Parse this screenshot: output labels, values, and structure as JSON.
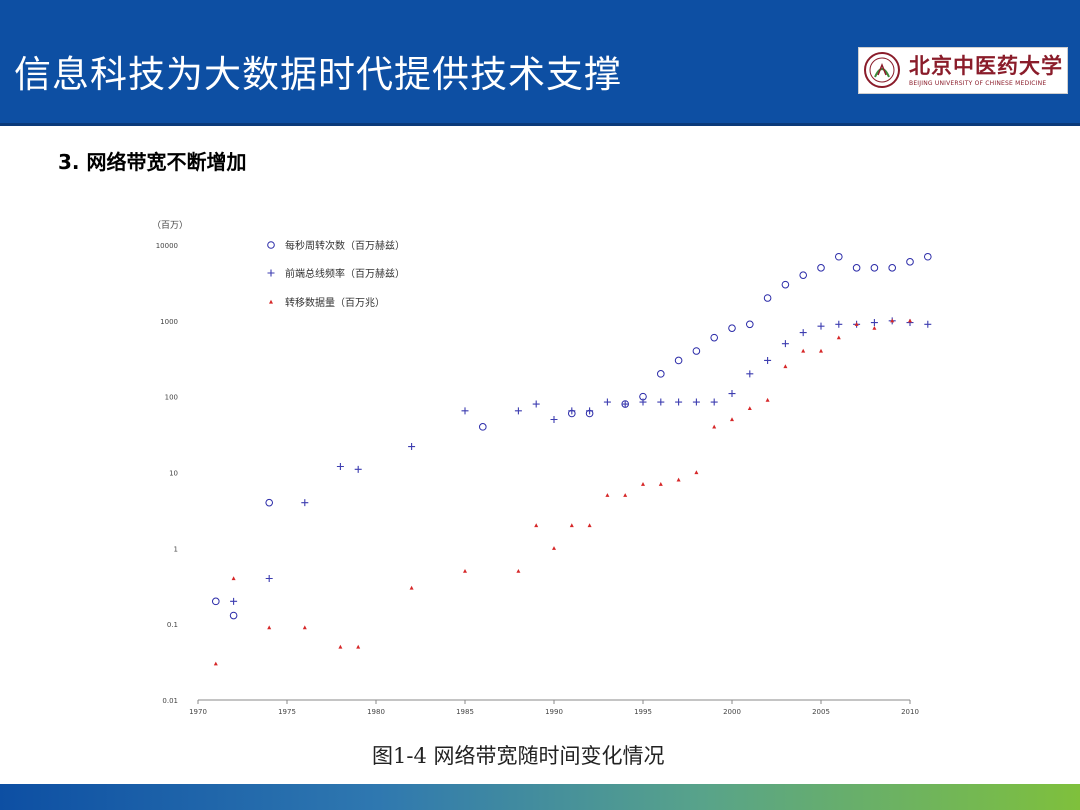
{
  "slide": {
    "title": "信息科技为大数据时代提供技术支撑",
    "subtitle": "3. 网络带宽不断增加",
    "caption": "图1-4 网络带宽随时间变化情况",
    "colors": {
      "header": "#0d4fa3",
      "accent_green": "#7fc03c",
      "logo_red": "#8a1c2a"
    }
  },
  "logo": {
    "name_cn": "北京中医药大学",
    "name_en": "BEIJING UNIVERSITY OF CHINESE MEDICINE",
    "icon": "university-seal-icon"
  },
  "chart_data": {
    "type": "scatter",
    "ylabel": "（百万）",
    "yscale": "log",
    "ylim": [
      0.01,
      10000
    ],
    "xlim": [
      1970,
      2010
    ],
    "x_ticks": [
      "1970",
      "1975",
      "1980",
      "1985",
      "1990",
      "1995",
      "2000",
      "2005",
      "2010"
    ],
    "y_ticks": [
      {
        "value": 10000,
        "label": "10000"
      },
      {
        "value": 1000,
        "label": "1000"
      },
      {
        "value": 100,
        "label": "100"
      },
      {
        "value": 10,
        "label": "10"
      },
      {
        "value": 1,
        "label": "1"
      },
      {
        "value": 0.1,
        "label": "0.1"
      },
      {
        "value": 0.01,
        "label": "0.01"
      }
    ],
    "grid": false,
    "legend_position": "top-left",
    "series": [
      {
        "name": "每秒周转次数（百万赫兹）",
        "marker": "circle",
        "color": "#2b2ba8",
        "points": [
          [
            1971,
            0.2
          ],
          [
            1972,
            0.13
          ],
          [
            1974,
            4
          ],
          [
            1986,
            40
          ],
          [
            1991,
            60
          ],
          [
            1992,
            60
          ],
          [
            1994,
            80
          ],
          [
            1995,
            100
          ],
          [
            1996,
            200
          ],
          [
            1997,
            300
          ],
          [
            1998,
            400
          ],
          [
            1999,
            600
          ],
          [
            2000,
            800
          ],
          [
            2001,
            900
          ],
          [
            2002,
            2000
          ],
          [
            2003,
            3000
          ],
          [
            2004,
            4000
          ],
          [
            2005,
            5000
          ],
          [
            2006,
            7000
          ],
          [
            2007,
            5000
          ],
          [
            2008,
            5000
          ],
          [
            2009,
            5000
          ],
          [
            2010,
            6000
          ],
          [
            2011,
            7000
          ]
        ]
      },
      {
        "name": "前端总线频率（百万赫兹）",
        "marker": "plus",
        "color": "#3d3db0",
        "points": [
          [
            1972,
            0.2
          ],
          [
            1974,
            0.4
          ],
          [
            1976,
            4
          ],
          [
            1978,
            12
          ],
          [
            1979,
            11
          ],
          [
            1982,
            22
          ],
          [
            1985,
            65
          ],
          [
            1988,
            65
          ],
          [
            1989,
            80
          ],
          [
            1990,
            50
          ],
          [
            1991,
            65
          ],
          [
            1992,
            65
          ],
          [
            1993,
            85
          ],
          [
            1994,
            80
          ],
          [
            1995,
            85
          ],
          [
            1996,
            85
          ],
          [
            1997,
            85
          ],
          [
            1998,
            85
          ],
          [
            1999,
            85
          ],
          [
            2000,
            110
          ],
          [
            2001,
            200
          ],
          [
            2002,
            300
          ],
          [
            2003,
            500
          ],
          [
            2004,
            700
          ],
          [
            2005,
            850
          ],
          [
            2006,
            900
          ],
          [
            2007,
            900
          ],
          [
            2008,
            950
          ],
          [
            2009,
            1000
          ],
          [
            2010,
            950
          ],
          [
            2011,
            900
          ]
        ]
      },
      {
        "name": "转移数据量（百万兆）",
        "marker": "triangle",
        "color": "#d62728",
        "points": [
          [
            1971,
            0.03
          ],
          [
            1972,
            0.4
          ],
          [
            1974,
            0.09
          ],
          [
            1976,
            0.09
          ],
          [
            1978,
            0.05
          ],
          [
            1979,
            0.05
          ],
          [
            1982,
            0.3
          ],
          [
            1985,
            0.5
          ],
          [
            1988,
            0.5
          ],
          [
            1989,
            2
          ],
          [
            1990,
            1
          ],
          [
            1991,
            2
          ],
          [
            1992,
            2
          ],
          [
            1993,
            5
          ],
          [
            1994,
            5
          ],
          [
            1995,
            7
          ],
          [
            1996,
            7
          ],
          [
            1997,
            8
          ],
          [
            1998,
            10
          ],
          [
            1999,
            40
          ],
          [
            2000,
            50
          ],
          [
            2001,
            70
          ],
          [
            2002,
            90
          ],
          [
            2003,
            250
          ],
          [
            2004,
            400
          ],
          [
            2005,
            400
          ],
          [
            2006,
            600
          ],
          [
            2007,
            900
          ],
          [
            2008,
            800
          ],
          [
            2009,
            1000
          ],
          [
            2010,
            1000
          ]
        ]
      }
    ]
  }
}
